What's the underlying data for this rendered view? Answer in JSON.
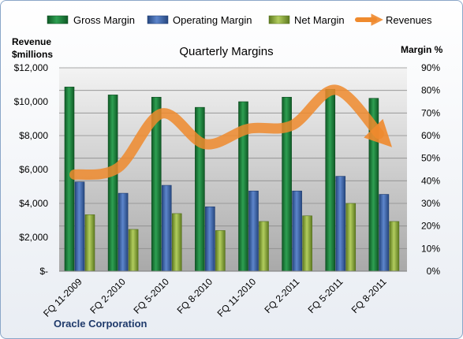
{
  "chart_data": {
    "type": "bar",
    "title": "Quarterly Margins",
    "corporation": "Oracle Corporation",
    "y_left_label_line1": "Revenue",
    "y_left_label_line2": "$millions",
    "y_right_label": "Margin %",
    "categories": [
      "FQ 11-2009",
      "FQ 2-2010",
      "FQ 5-2010",
      "FQ 8-2010",
      "FQ 11-2010",
      "FQ 2-2011",
      "FQ 5-2011",
      "FQ 8-2011"
    ],
    "y_left_ticks": [
      "$-",
      "$2,000",
      "$4,000",
      "$6,000",
      "$8,000",
      "$10,000",
      "$12,000"
    ],
    "y_right_ticks": [
      "0%",
      "10%",
      "20%",
      "30%",
      "40%",
      "50%",
      "60%",
      "70%",
      "80%",
      "90%"
    ],
    "ylim_left": [
      0,
      12000
    ],
    "ylim_right": [
      0,
      90
    ],
    "series": [
      {
        "name": "Gross Margin",
        "axis": "right",
        "color": "#1e7a3c",
        "values": [
          81.5,
          78,
          77,
          72.5,
          75,
          77,
          80.5,
          76.5
        ]
      },
      {
        "name": "Operating Margin",
        "axis": "right",
        "color": "#3f6bb5",
        "values": [
          39.5,
          34.5,
          38,
          28.5,
          35.5,
          35.5,
          42,
          34
        ]
      },
      {
        "name": "Net Margin",
        "axis": "right",
        "color": "#8fae3e",
        "values": [
          25,
          18.5,
          25.5,
          18,
          22,
          24.5,
          30,
          22
        ]
      },
      {
        "name": "Revenues",
        "axis": "left",
        "type": "line",
        "color": "#ef8a2d",
        "values": [
          5700,
          6100,
          9300,
          7500,
          8400,
          8600,
          10700,
          8100
        ]
      }
    ],
    "grid": true,
    "legend": "top"
  }
}
